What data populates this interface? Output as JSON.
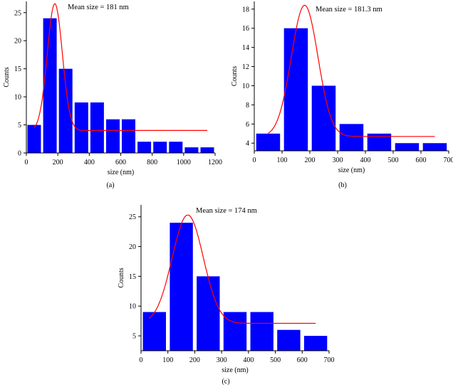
{
  "colors": {
    "bar": "#0000ff",
    "fit": "#ff0000",
    "axis": "#000000",
    "background": "#ffffff"
  },
  "chart_data": [
    {
      "type": "bar",
      "panel_label": "(a)",
      "annotation": "Mean size = 181 nm",
      "xlabel": "size (nm)",
      "ylabel": "Counts",
      "xlim": [
        0,
        1200
      ],
      "ylim": [
        0,
        27
      ],
      "xticks": [
        0,
        200,
        400,
        600,
        800,
        1000,
        1200
      ],
      "yticks": [
        0,
        5,
        10,
        15,
        20,
        25
      ],
      "bin_width": 100,
      "bins": [
        50,
        150,
        250,
        350,
        450,
        550,
        650,
        750,
        850,
        950,
        1050,
        1150
      ],
      "values": [
        5,
        24,
        15,
        9,
        9,
        6,
        6,
        2,
        2,
        2,
        1,
        1
      ],
      "fit": {
        "type": "gaussian",
        "x0": 181,
        "baseline": 4,
        "amplitude": 22.6,
        "sigma": 48,
        "x_range": [
          50,
          1150
        ]
      }
    },
    {
      "type": "bar",
      "panel_label": "(b)",
      "annotation": "Mean size = 181.3 nm",
      "xlabel": "size (nm)",
      "ylabel": "Counts",
      "xlim": [
        0,
        700
      ],
      "ylim": [
        3.2,
        18.8
      ],
      "xticks": [
        0,
        100,
        200,
        300,
        400,
        500,
        600,
        700
      ],
      "yticks": [
        4,
        6,
        8,
        10,
        12,
        14,
        16,
        18
      ],
      "bin_width": 100,
      "bins": [
        50,
        150,
        250,
        350,
        450,
        550,
        650
      ],
      "values": [
        5,
        16,
        10,
        6,
        5,
        4,
        4
      ],
      "fit": {
        "type": "gaussian",
        "x0": 181.3,
        "baseline": 4.7,
        "amplitude": 13.7,
        "sigma": 48,
        "x_range": [
          50,
          650
        ]
      }
    },
    {
      "type": "bar",
      "panel_label": "(c)",
      "annotation": "Mean size = 174 nm",
      "xlabel": "size (nm)",
      "ylabel": "Counts",
      "xlim": [
        0,
        700
      ],
      "ylim": [
        2.5,
        27
      ],
      "xticks": [
        0,
        100,
        200,
        300,
        400,
        500,
        600,
        700
      ],
      "yticks": [
        5,
        10,
        15,
        20,
        25
      ],
      "bin_width": 100,
      "bins": [
        50,
        150,
        250,
        350,
        450,
        550,
        650
      ],
      "values": [
        9,
        24,
        15,
        9,
        9,
        6,
        5
      ],
      "fit": {
        "type": "gaussian",
        "x0": 174,
        "baseline": 7.1,
        "amplitude": 18.2,
        "sigma": 58,
        "x_range": [
          30,
          650
        ]
      }
    }
  ]
}
